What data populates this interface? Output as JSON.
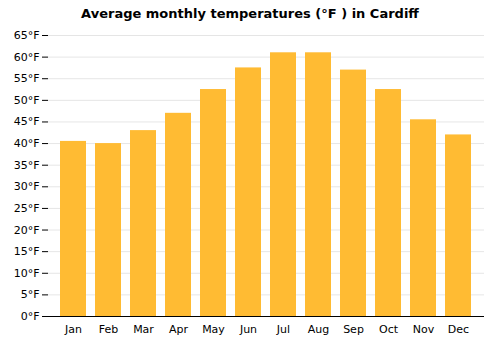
{
  "chart_data": {
    "type": "bar",
    "title": "Average monthly temperatures (°F ) in Cardiff",
    "categories": [
      "Jan",
      "Feb",
      "Mar",
      "Apr",
      "May",
      "Jun",
      "Jul",
      "Aug",
      "Sep",
      "Oct",
      "Nov",
      "Dec"
    ],
    "values": [
      40.5,
      40.0,
      43.0,
      47.0,
      52.5,
      57.5,
      61.0,
      61.0,
      57.0,
      52.5,
      45.5,
      42.0
    ],
    "color": "#FFBB33",
    "ylim": [
      0,
      65
    ],
    "yticks": [
      {
        "value": 0,
        "label": "0°F"
      },
      {
        "value": 5,
        "label": "5°F"
      },
      {
        "value": 10,
        "label": "10°F"
      },
      {
        "value": 15,
        "label": "15°F"
      },
      {
        "value": 20,
        "label": "20°F"
      },
      {
        "value": 25,
        "label": "25°F"
      },
      {
        "value": 30,
        "label": "30°F"
      },
      {
        "value": 35,
        "label": "35°F"
      },
      {
        "value": 40,
        "label": "40°F"
      },
      {
        "value": 45,
        "label": "45°F"
      },
      {
        "value": 50,
        "label": "50°F"
      },
      {
        "value": 55,
        "label": "55°F"
      },
      {
        "value": 60,
        "label": "60°F"
      },
      {
        "value": 65,
        "label": "65°F"
      }
    ],
    "grid": true
  }
}
